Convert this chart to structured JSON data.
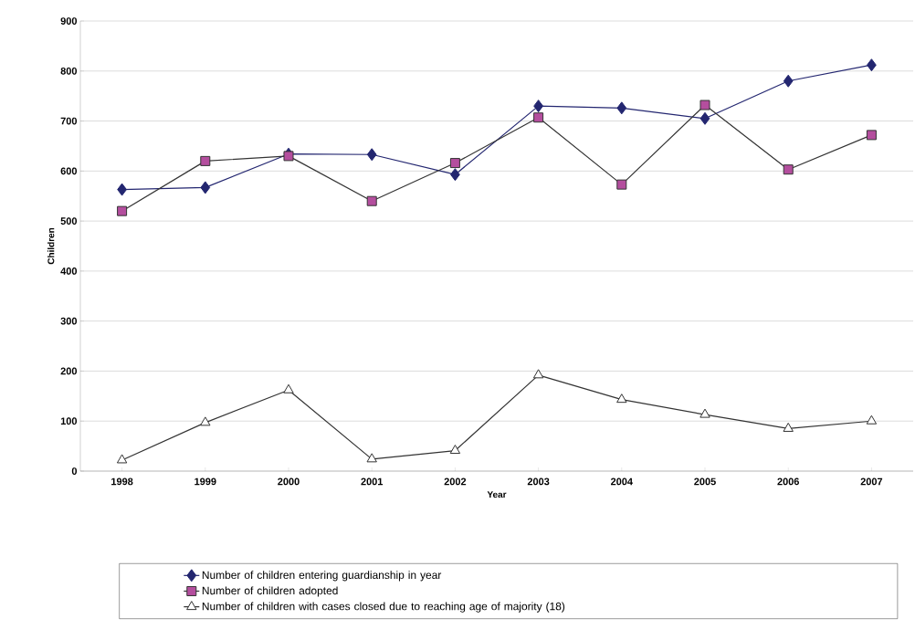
{
  "chart_data": {
    "type": "line",
    "xlabel": "Year",
    "ylabel": "Children",
    "categories": [
      "1998",
      "1999",
      "2000",
      "2001",
      "2002",
      "2003",
      "2004",
      "2005",
      "2006",
      "2007"
    ],
    "ylim": [
      0,
      900
    ],
    "yticks": [
      0,
      100,
      200,
      300,
      400,
      500,
      600,
      700,
      800,
      900
    ],
    "grid": "y",
    "legend": "bottom",
    "series": [
      {
        "name": "Number of children entering guardianship in year",
        "color": "#232670",
        "marker": "diamond",
        "values": [
          563,
          567,
          634,
          633,
          593,
          730,
          726,
          705,
          780,
          812
        ]
      },
      {
        "name": "Number of children adopted",
        "color": "#b44e9e",
        "marker": "square",
        "values": [
          520,
          620,
          630,
          540,
          616,
          707,
          573,
          732,
          603,
          672
        ]
      },
      {
        "name": "Number of children with cases closed due to reaching age of majority (18)",
        "color": "#ffffff",
        "marker": "triangle",
        "values": [
          22,
          97,
          162,
          24,
          41,
          192,
          143,
          113,
          85,
          100
        ]
      }
    ]
  }
}
